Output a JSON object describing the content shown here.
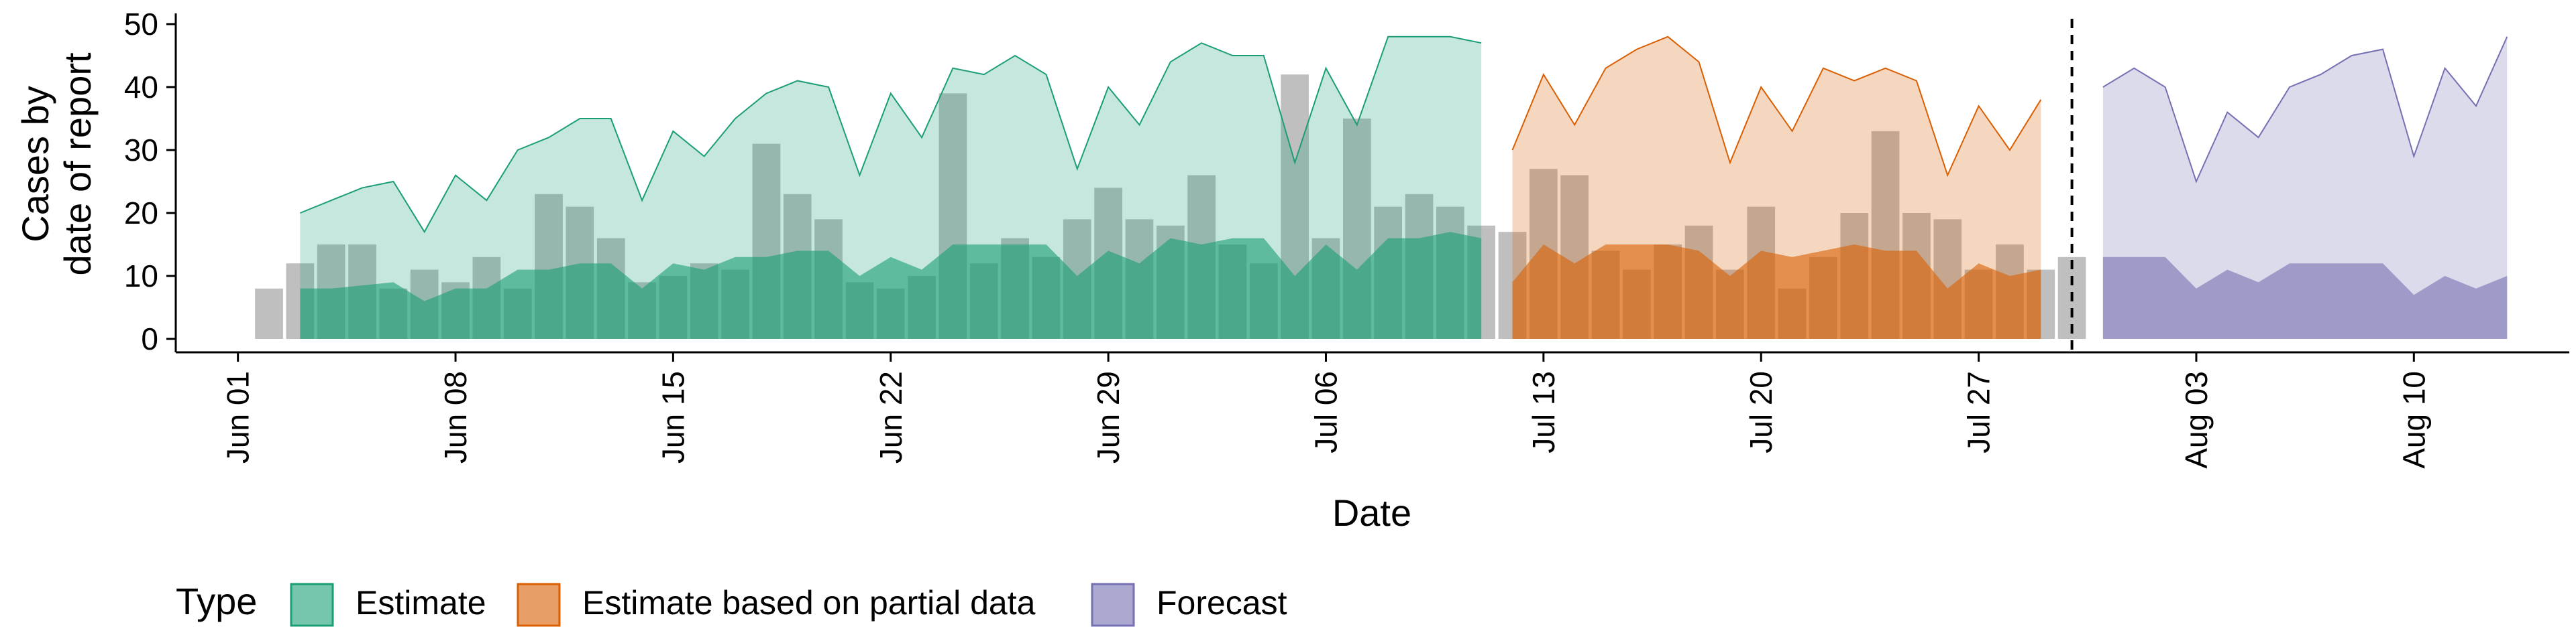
{
  "chart_data": {
    "type": "area",
    "xlabel": "Date",
    "ylabel_lines": [
      "Cases by",
      "date of report"
    ],
    "ylim": [
      0,
      50
    ],
    "yticks": [
      0,
      10,
      20,
      30,
      40,
      50
    ],
    "x_range": [
      "2020-05-30",
      "2020-08-15"
    ],
    "xticks": [
      "2020-06-01",
      "2020-06-08",
      "2020-06-15",
      "2020-06-22",
      "2020-06-29",
      "2020-07-06",
      "2020-07-13",
      "2020-07-20",
      "2020-07-27",
      "2020-08-03",
      "2020-08-10"
    ],
    "xtick_labels": [
      "Jun 01",
      "Jun 08",
      "Jun 15",
      "Jun 22",
      "Jun 29",
      "Jul 06",
      "Jul 13",
      "Jul 20",
      "Jul 27",
      "Aug 03",
      "Aug 10"
    ],
    "forecast_date": "2020-07-30",
    "legend": {
      "title": "Type",
      "position": "bottom",
      "entries": [
        "Estimate",
        "Estimate based on partial data",
        "Forecast"
      ]
    },
    "colors": {
      "estimate_fill": "#1b9e77",
      "partial_fill": "#d95f02",
      "forecast_fill": "#7570b3",
      "bars": "#808080",
      "vline": "#000000"
    },
    "reported_cases": {
      "start": "2020-06-02",
      "values": [
        8,
        12,
        15,
        15,
        8,
        11,
        9,
        13,
        8,
        23,
        21,
        16,
        9,
        10,
        12,
        11,
        31,
        23,
        19,
        9,
        8,
        10,
        39,
        12,
        16,
        13,
        19,
        24,
        19,
        18,
        26,
        15,
        12,
        42,
        16,
        35,
        21,
        23,
        21,
        18,
        17,
        27,
        26,
        14,
        11,
        15,
        18,
        11,
        21,
        8,
        13,
        20,
        33,
        20,
        19,
        11,
        15,
        11,
        13
      ]
    },
    "series": [
      {
        "name": "Estimate",
        "start": "2020-06-03",
        "upper": [
          20,
          22,
          24,
          25,
          17,
          26,
          22,
          30,
          32,
          35,
          35,
          22,
          33,
          29,
          35,
          39,
          41,
          40,
          26,
          39,
          32,
          43,
          42,
          45,
          42,
          27,
          40,
          34,
          44,
          47,
          45,
          45,
          28,
          43,
          34,
          48,
          48,
          48,
          47
        ],
        "lower": [
          8,
          8,
          8.5,
          9,
          6,
          8,
          8,
          11,
          11,
          12,
          12,
          8,
          12,
          11,
          13,
          13,
          14,
          14,
          10,
          13,
          11,
          15,
          15,
          15,
          15,
          10,
          14,
          12,
          16,
          15,
          16,
          16,
          10,
          15,
          11,
          16,
          16,
          17,
          16
        ]
      },
      {
        "name": "Estimate based on partial data",
        "start": "2020-07-12",
        "upper": [
          30,
          42,
          34,
          43,
          46,
          48,
          44,
          28,
          40,
          33,
          43,
          41,
          43,
          41,
          26,
          37,
          30,
          38
        ],
        "lower": [
          9,
          15,
          12,
          15,
          15,
          15,
          14,
          10,
          14,
          13,
          14,
          15,
          14,
          14,
          8,
          12,
          10,
          11
        ]
      },
      {
        "name": "Forecast",
        "start": "2020-07-31",
        "upper": [
          40,
          43,
          40,
          25,
          36,
          32,
          40,
          42,
          45,
          46,
          29,
          43,
          37,
          48
        ],
        "lower": [
          13,
          13,
          13,
          8,
          11,
          9,
          12,
          12,
          12,
          12,
          7,
          10,
          8,
          10
        ]
      }
    ]
  }
}
